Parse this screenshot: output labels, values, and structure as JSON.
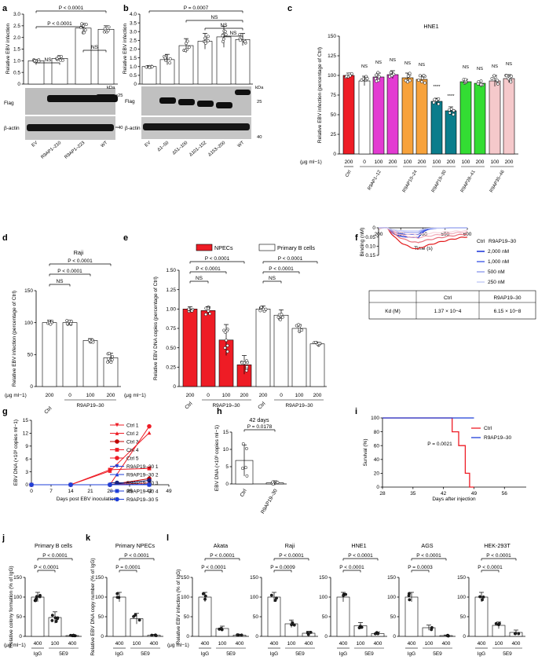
{
  "colors": {
    "red": "#ee1c25",
    "darkred": "#c00000",
    "magenta": "#e33bd2",
    "orange": "#f7a23b",
    "teal": "#0b7d8c",
    "green": "#33dd33",
    "pink": "#f5c9cb",
    "blue": "#1f3fd8",
    "navy": "#1a237e",
    "gray": "#888888"
  },
  "panel_letters": [
    "a",
    "b",
    "c",
    "d",
    "e",
    "f",
    "g",
    "h",
    "i",
    "j",
    "k",
    "l"
  ],
  "chart_data": [
    {
      "panel": "a",
      "type": "bar",
      "ylabel": "Relative EBV infection",
      "ylim": [
        0,
        3
      ],
      "yticks": [
        "0",
        "0.5",
        "1.0",
        "1.5",
        "2.0",
        "2.5",
        "3.0"
      ],
      "categories": [
        "EV",
        "R9AP1–210",
        "R9AP1–223",
        "WT"
      ],
      "values": [
        1.0,
        1.1,
        2.4,
        2.35
      ],
      "significance": [
        {
          "label": "P < 0.0001",
          "from": 0,
          "to": 3
        },
        {
          "label": "P < 0.0001",
          "from": 0,
          "to": 2
        },
        {
          "label": "NS",
          "from": 0,
          "to": 1
        },
        {
          "label": "NS",
          "from": 2,
          "to": 3
        }
      ],
      "blot": {
        "labels": [
          "Flag",
          "β-actin"
        ],
        "kda_label": "kDa",
        "markers": [
          "25",
          "40"
        ]
      }
    },
    {
      "panel": "b",
      "type": "bar",
      "ylabel": "Relative EBV infection",
      "ylim": [
        0,
        4
      ],
      "yticks": [
        "0",
        "0.5",
        "1.0",
        "1.5",
        "2.0",
        "2.5",
        "3.0",
        "3.5",
        "4.0"
      ],
      "categories": [
        "EV",
        "Δ1–50",
        "Δ51–100",
        "Δ101–152",
        "Δ153–200",
        "WT"
      ],
      "values": [
        1.0,
        1.4,
        2.2,
        2.45,
        2.7,
        2.55
      ],
      "significance": [
        {
          "label": "P = 0.0007",
          "from": 0,
          "to": 5
        },
        {
          "label": "NS",
          "from": 2,
          "to": 5
        },
        {
          "label": "NS",
          "from": 3,
          "to": 5
        },
        {
          "label": "NS",
          "from": 4,
          "to": 5
        }
      ],
      "blot": {
        "labels": [
          "Flag",
          "β-actin"
        ],
        "kda_label": "kDa",
        "markers": [
          "25",
          "40"
        ]
      }
    },
    {
      "panel": "c",
      "type": "bar",
      "title": "HNE1",
      "ylabel": "Relative EBV infection (percentage of Ctrl)",
      "ylim": [
        0,
        150
      ],
      "yticks": [
        "0",
        "25",
        "50",
        "75",
        "100",
        "125",
        "150"
      ],
      "conc_unit": "(μg ml−1)",
      "concentrations": [
        "200",
        "0",
        "100",
        "200",
        "100",
        "200",
        "100",
        "200",
        "100",
        "200",
        "100",
        "200"
      ],
      "groups": [
        {
          "label": "Ctrl",
          "bars": [
            0
          ]
        },
        {
          "label": "R9AP1–12",
          "bars": [
            1,
            2,
            3
          ]
        },
        {
          "label": "R9AP10–24",
          "bars": [
            4,
            5
          ]
        },
        {
          "label": "R9AP19–30",
          "bars": [
            6,
            7
          ]
        },
        {
          "label": "R9AP28–41",
          "bars": [
            8,
            9
          ]
        },
        {
          "label": "R9AP35–46",
          "bars": [
            10,
            11
          ]
        }
      ],
      "values": [
        100,
        93,
        98,
        101,
        97,
        95,
        67,
        55,
        92,
        90,
        93,
        96
      ],
      "marks": [
        "",
        "NS",
        "NS",
        "NS",
        "NS",
        "NS",
        "****",
        "****",
        "NS",
        "NS",
        "NS",
        "NS"
      ]
    },
    {
      "panel": "d",
      "type": "bar",
      "title": "Raji",
      "ylabel": "Relative EBV infection (percentage of Ctrl)",
      "ylim": [
        0,
        150
      ],
      "yticks": [
        "0",
        "50",
        "100",
        "150"
      ],
      "conc_unit": "(μg ml−1)",
      "concentrations": [
        "200",
        "0",
        "100",
        "200"
      ],
      "groups": [
        {
          "label": "Ctrl",
          "bars": [
            0
          ]
        },
        {
          "label": "R9AP19–30",
          "bars": [
            1,
            2,
            3
          ]
        }
      ],
      "values": [
        100,
        100,
        72,
        45
      ],
      "significance": [
        {
          "label": "P < 0.0001",
          "from": 0,
          "to": 3
        },
        {
          "label": "P < 0.0001",
          "from": 0,
          "to": 2
        },
        {
          "label": "NS",
          "from": 0,
          "to": 1
        }
      ]
    },
    {
      "panel": "e",
      "type": "bar",
      "ylabel": "Relative EBV DNA copies (percentage of Ctrl)",
      "ylim": [
        0,
        1.5
      ],
      "yticks": [
        "0",
        "0.25",
        "0.50",
        "0.75",
        "1.00",
        "1.25",
        "1.50"
      ],
      "legend": [
        "NPECs",
        "Primary B cells"
      ],
      "conc_unit": "(μg ml−1)",
      "concentrations": [
        "200",
        "0",
        "100",
        "200",
        "200",
        "0",
        "100",
        "200"
      ],
      "groups": [
        {
          "label": "Ctrl",
          "bars": [
            0
          ]
        },
        {
          "label": "R9AP19–30",
          "bars": [
            1,
            2,
            3
          ]
        },
        {
          "label": "Ctrl",
          "bars": [
            4
          ]
        },
        {
          "label": "R9AP19–30",
          "bars": [
            5,
            6,
            7
          ]
        }
      ],
      "series": [
        {
          "name": "NPECs",
          "values": [
            1.0,
            0.98,
            0.6,
            0.28
          ]
        },
        {
          "name": "Primary B cells",
          "values": [
            1.0,
            0.92,
            0.75,
            0.55
          ]
        }
      ],
      "significance": [
        {
          "label": "P < 0.0001",
          "from": 0,
          "to": 3
        },
        {
          "label": "P < 0.0001",
          "from": 0,
          "to": 2
        },
        {
          "label": "NS",
          "from": 0,
          "to": 1
        },
        {
          "label": "P < 0.0001",
          "from": 4,
          "to": 7
        },
        {
          "label": "P < 0.0001",
          "from": 4,
          "to": 6
        },
        {
          "label": "NS",
          "from": 4,
          "to": 5
        }
      ]
    },
    {
      "panel": "f",
      "type": "line",
      "ylabel": "Binding (nM)",
      "xlabel": "Time (s)",
      "xlim": [
        200,
        600
      ],
      "ylim": [
        0,
        0.15
      ],
      "xticks": [
        "200",
        "300",
        "400",
        "500",
        "600"
      ],
      "yticks": [
        "0",
        "0.05",
        "0.10",
        "0.15"
      ],
      "legend_title_left": "Ctrl",
      "legend_title_right": "R9AP19–30",
      "series": [
        {
          "name": "2,000 nM",
          "peak": 0.118
        },
        {
          "name": "1,000 nM",
          "peak": 0.082
        },
        {
          "name": "500 nM",
          "peak": 0.056
        },
        {
          "name": "250 nM",
          "peak": 0.038
        }
      ],
      "table": {
        "header": [
          "",
          "Ctrl",
          "R9AP19–30"
        ],
        "row_label": "Kd (M)",
        "values": [
          "1.37 × 10−4",
          "6.15 × 10−8"
        ]
      }
    },
    {
      "panel": "g",
      "type": "line",
      "ylabel": "EBV DNA (×10³ copies ml−1)",
      "xlabel": "Days post EBV inoculation",
      "xticks": [
        "0",
        "7",
        "14",
        "21",
        "28",
        "35",
        "42",
        "49"
      ],
      "yticks": [
        "0",
        "3",
        "6",
        "9",
        "12",
        "15"
      ],
      "x": [
        0,
        14,
        28,
        42
      ],
      "series": [
        {
          "name": "Ctrl 1",
          "values": [
            0,
            0,
            0,
            0.4
          ]
        },
        {
          "name": "Ctrl 2",
          "values": [
            0,
            0,
            3.2,
            12.1
          ]
        },
        {
          "name": "Ctrl 3",
          "values": [
            0,
            0,
            0,
            1.4
          ]
        },
        {
          "name": "Ctrl 4",
          "values": [
            0,
            0,
            3.5,
            3.8
          ]
        },
        {
          "name": "Ctrl 5",
          "values": [
            0,
            0,
            0,
            13.6
          ]
        },
        {
          "name": "R9AP19–30 1",
          "values": [
            0,
            0,
            0,
            0
          ]
        },
        {
          "name": "R9AP19–30 2",
          "values": [
            0,
            0,
            0,
            0.1
          ]
        },
        {
          "name": "R9AP19–30 3",
          "values": [
            0,
            0,
            0,
            1.0
          ]
        },
        {
          "name": "R9AP19–30 4",
          "values": [
            0,
            0,
            0,
            0
          ]
        },
        {
          "name": "R9AP19–30 5",
          "values": [
            0,
            0,
            0,
            0
          ]
        }
      ]
    },
    {
      "panel": "h",
      "type": "bar",
      "title": "42 days",
      "ylabel": "EBV DNA (×10³ copies ml−1)",
      "ylim": [
        0,
        15
      ],
      "yticks": [
        "0",
        "5",
        "10",
        "15"
      ],
      "categories": [
        "Ctrl",
        "R9AP19–30"
      ],
      "values": [
        6.8,
        0.3
      ],
      "significance": [
        {
          "label": "P = 0.0178",
          "from": 0,
          "to": 1
        }
      ]
    },
    {
      "panel": "i",
      "type": "line",
      "ylabel": "Survival (%)",
      "xlabel": "Days after injection",
      "xticks": [
        "28",
        "35",
        "42",
        "49",
        "56"
      ],
      "yticks": [
        "0",
        "20",
        "40",
        "60",
        "80",
        "100"
      ],
      "legend": [
        "Ctrl",
        "R9AP19–30"
      ],
      "annotation": "P = 0.0021",
      "series": [
        {
          "name": "Ctrl",
          "x": [
            28,
            44,
            44,
            45.5,
            45.5,
            47,
            47,
            48,
            48,
            49
          ],
          "values": [
            100,
            100,
            80,
            80,
            60,
            60,
            20,
            20,
            0,
            0
          ]
        },
        {
          "name": "R9AP19–30",
          "x": [
            28,
            49
          ],
          "values": [
            100,
            100
          ]
        }
      ]
    },
    {
      "panel": "j",
      "type": "bar",
      "title": "Primary B cells",
      "ylabel": "Relative colony formation (% of IgG)",
      "ylim": [
        0,
        150
      ],
      "yticks": [
        "0",
        "50",
        "100",
        "150"
      ],
      "conc_unit": "(μg ml−1)",
      "concentrations": [
        "400",
        "100",
        "400"
      ],
      "groups": [
        {
          "label": "IgG",
          "bars": [
            0
          ]
        },
        {
          "label": "5E9",
          "bars": [
            1,
            2
          ]
        }
      ],
      "values": [
        100,
        48,
        2
      ],
      "significance": [
        {
          "label": "P < 0.0001",
          "from": 0,
          "to": 2
        },
        {
          "label": "P < 0.0001",
          "from": 0,
          "to": 1
        }
      ]
    },
    {
      "panel": "k",
      "type": "bar",
      "title": "Primary NPECs",
      "ylabel": "Relative EBV DNA copy number (% of IgG)",
      "ylim": [
        0,
        150
      ],
      "yticks": [
        "0",
        "50",
        "100",
        "150"
      ],
      "concentrations": [
        "400",
        "100",
        "400"
      ],
      "groups": [
        {
          "label": "IgG",
          "bars": [
            0
          ]
        },
        {
          "label": "5E9",
          "bars": [
            1,
            2
          ]
        }
      ],
      "values": [
        100,
        45,
        3
      ],
      "significance": [
        {
          "label": "P < 0.0001",
          "from": 0,
          "to": 2
        },
        {
          "label": "P = 0.0001",
          "from": 0,
          "to": 1
        }
      ]
    },
    {
      "panel": "l",
      "type": "bar",
      "ylabel": "Relative EBV infection (% of IgG)",
      "ylim": [
        0,
        150
      ],
      "yticks": [
        "0",
        "50",
        "100",
        "150"
      ],
      "conc_unit": "(μg ml−1)",
      "subplots": [
        {
          "title": "Akata",
          "values": [
            100,
            20,
            3
          ],
          "significance": [
            {
              "label": "P < 0.0001",
              "from": 0,
              "to": 2
            },
            {
              "label": "P < 0.0001",
              "from": 0,
              "to": 1
            }
          ]
        },
        {
          "title": "Raji",
          "values": [
            100,
            32,
            8
          ],
          "significance": [
            {
              "label": "P < 0.0001",
              "from": 0,
              "to": 2
            },
            {
              "label": "P = 0.0009",
              "from": 0,
              "to": 1
            }
          ]
        },
        {
          "title": "HNE1",
          "values": [
            100,
            27,
            7
          ],
          "significance": [
            {
              "label": "P < 0.0001",
              "from": 0,
              "to": 2
            },
            {
              "label": "P < 0.0001",
              "from": 0,
              "to": 1
            }
          ]
        },
        {
          "title": "AGS",
          "values": [
            100,
            22,
            2
          ],
          "significance": [
            {
              "label": "P < 0.0001",
              "from": 0,
              "to": 2
            },
            {
              "label": "P = 0.0003",
              "from": 0,
              "to": 1
            }
          ]
        },
        {
          "title": "HEK-293T",
          "values": [
            100,
            28,
            10
          ],
          "significance": [
            {
              "label": "P < 0.0001",
              "from": 0,
              "to": 2
            },
            {
              "label": "P < 0.0001",
              "from": 0,
              "to": 1
            }
          ]
        }
      ],
      "concentrations": [
        "400",
        "100",
        "400"
      ],
      "groups": [
        {
          "label": "IgG",
          "bars": [
            0
          ]
        },
        {
          "label": "5E9",
          "bars": [
            1,
            2
          ]
        }
      ]
    }
  ]
}
